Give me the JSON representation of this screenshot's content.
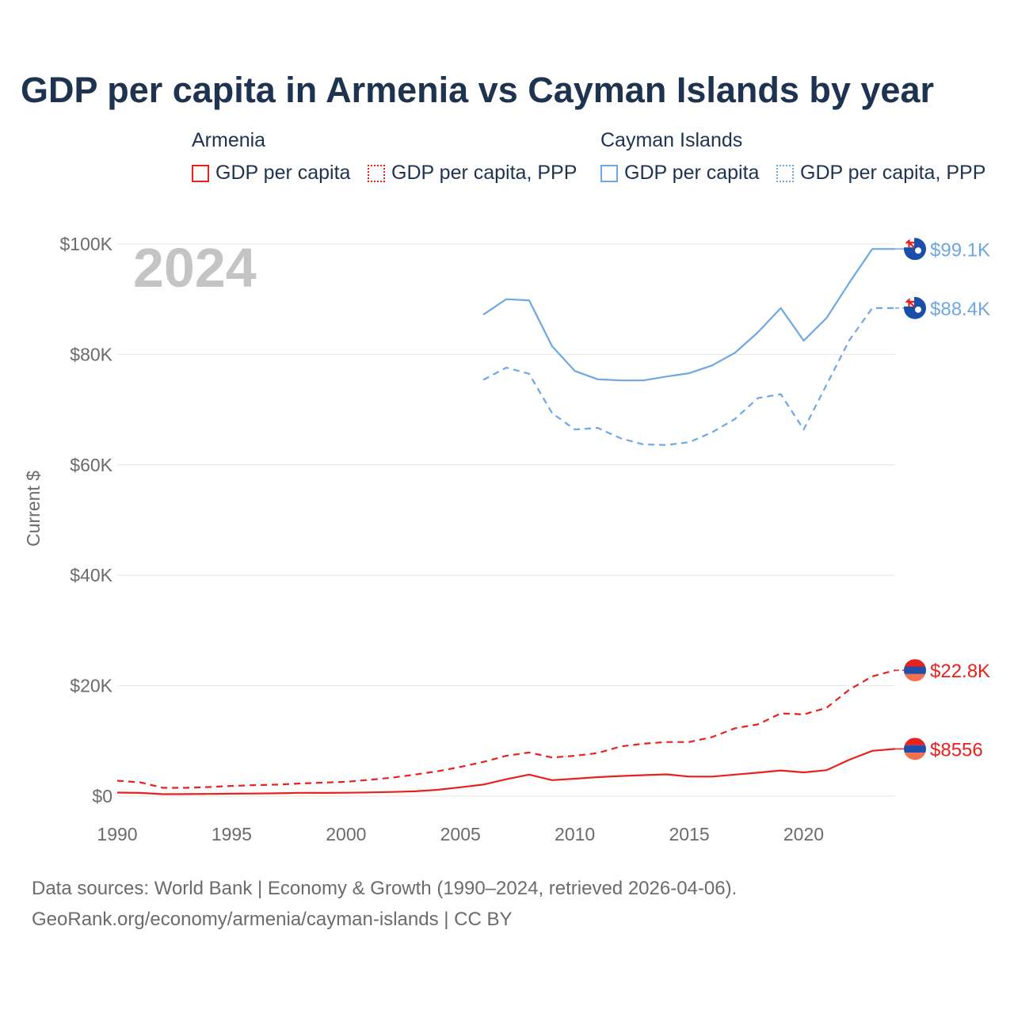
{
  "title": "GDP per capita in Armenia vs Cayman Islands by year",
  "legend": {
    "groups": [
      {
        "name": "Armenia",
        "color": "#e8201e",
        "items": [
          "GDP per capita",
          "GDP per capita, PPP"
        ]
      },
      {
        "name": "Cayman Islands",
        "color": "#6ea7e3",
        "items": [
          "GDP per capita",
          "GDP per capita, PPP"
        ]
      }
    ]
  },
  "footer": {
    "line1": "Data sources: World Bank | Economy & Growth (1990–2024, retrieved 2026-04-06).",
    "line2": "GeoRank.org/economy/armenia/cayman-islands | CC BY"
  },
  "chart_data": {
    "type": "line",
    "title": "GDP per capita in Armenia vs Cayman Islands by year",
    "xlabel": "",
    "ylabel": "Current $",
    "current_year_label": "2024",
    "xlim": [
      1990,
      2024
    ],
    "ylim": [
      0,
      100000
    ],
    "x_ticks": [
      1990,
      1995,
      2000,
      2005,
      2010,
      2015,
      2020
    ],
    "y_ticks": [
      {
        "value": 0,
        "label": "$0"
      },
      {
        "value": 20000,
        "label": "$20K"
      },
      {
        "value": 40000,
        "label": "$40K"
      },
      {
        "value": 60000,
        "label": "$60K"
      },
      {
        "value": 80000,
        "label": "$80K"
      },
      {
        "value": 100000,
        "label": "$100K"
      }
    ],
    "grid": true,
    "series": [
      {
        "name": "Armenia GDP per capita",
        "color": "#e8201e",
        "dashed": false,
        "x": [
          1990,
          1991,
          1992,
          1993,
          1994,
          1995,
          1996,
          1997,
          1998,
          1999,
          2000,
          2001,
          2002,
          2003,
          2004,
          2005,
          2006,
          2007,
          2008,
          2009,
          2010,
          2011,
          2012,
          2013,
          2014,
          2015,
          2016,
          2017,
          2018,
          2019,
          2020,
          2021,
          2022,
          2023,
          2024
        ],
        "values": [
          640,
          590,
          360,
          370,
          400,
          450,
          480,
          510,
          600,
          590,
          620,
          680,
          760,
          880,
          1150,
          1600,
          2100,
          3050,
          3900,
          2900,
          3150,
          3450,
          3650,
          3800,
          3950,
          3550,
          3550,
          3900,
          4250,
          4650,
          4300,
          4700,
          6600,
          8200,
          8556
        ],
        "end_label": "$8556"
      },
      {
        "name": "Armenia GDP per capita, PPP",
        "color": "#e8201e",
        "dashed": true,
        "x": [
          1990,
          1991,
          1992,
          1993,
          1994,
          1995,
          1996,
          1997,
          1998,
          1999,
          2000,
          2001,
          2002,
          2003,
          2004,
          2005,
          2006,
          2007,
          2008,
          2009,
          2010,
          2011,
          2012,
          2013,
          2014,
          2015,
          2016,
          2017,
          2018,
          2019,
          2020,
          2021,
          2022,
          2023,
          2024
        ],
        "values": [
          2800,
          2500,
          1500,
          1500,
          1650,
          1850,
          2000,
          2100,
          2300,
          2450,
          2600,
          2950,
          3350,
          3900,
          4500,
          5300,
          6200,
          7300,
          7900,
          7000,
          7300,
          7800,
          9000,
          9500,
          9800,
          9800,
          10700,
          12300,
          13000,
          15000,
          14800,
          16000,
          19300,
          21700,
          22800
        ],
        "end_label": "$22.8K"
      },
      {
        "name": "Cayman Islands GDP per capita",
        "color": "#6ea7e3",
        "dashed": false,
        "x": [
          2006,
          2007,
          2008,
          2009,
          2010,
          2011,
          2012,
          2013,
          2014,
          2015,
          2016,
          2017,
          2018,
          2019,
          2020,
          2021,
          2022,
          2023,
          2024
        ],
        "values": [
          87200,
          90000,
          89800,
          81500,
          77000,
          75500,
          75300,
          75300,
          76000,
          76600,
          78000,
          80300,
          84000,
          88400,
          82500,
          86600,
          93000,
          99100,
          99100
        ],
        "end_label": "$99.1K"
      },
      {
        "name": "Cayman Islands GDP per capita, PPP",
        "color": "#6ea7e3",
        "dashed": true,
        "x": [
          2006,
          2007,
          2008,
          2009,
          2010,
          2011,
          2012,
          2013,
          2014,
          2015,
          2016,
          2017,
          2018,
          2019,
          2020,
          2021,
          2022,
          2023,
          2024
        ],
        "values": [
          75400,
          77600,
          76500,
          69400,
          66400,
          66700,
          64800,
          63700,
          63600,
          64100,
          65900,
          68300,
          72100,
          72800,
          66400,
          74500,
          82600,
          88400,
          88400
        ],
        "end_label": "$88.4K"
      }
    ]
  }
}
